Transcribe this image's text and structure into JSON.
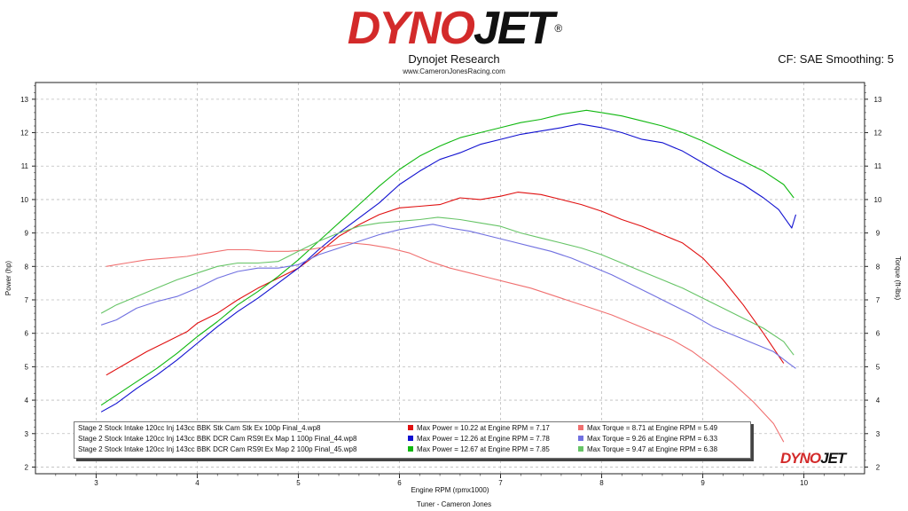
{
  "header": {
    "logo_text_a": "DYNO",
    "logo_text_b": "JET",
    "logo_reg": "®",
    "company": "Dynojet Research",
    "website": "www.CameronJonesRacing.com",
    "cf_text": "CF: SAE Smoothing: 5"
  },
  "footer": {
    "tuner": "Tuner - Cameron Jones",
    "mini_logo_a": "DYNO",
    "mini_logo_b": "JET"
  },
  "colors": {
    "red": "#e01010",
    "blue": "#1010d0",
    "green": "#10b810",
    "red_light": "#f07070",
    "blue_light": "#7070e0",
    "green_light": "#66c466",
    "logo_red": "#d32a2a"
  },
  "legend": {
    "rows": [
      {
        "name": "Stage 2 Stock Intake 120cc Inj 143cc BBK Stk Cam Stk Ex 100p Final_4.wp8",
        "power": "Max Power = 10.22 at Engine RPM = 7.17",
        "torque": "Max Torque = 8.71 at Engine RPM = 5.49",
        "color": "#e01010",
        "torque_color": "#f07070"
      },
      {
        "name": "Stage 2 Stock Intake 120cc Inj 143cc BBK DCR Cam RS9t Ex Map 1 100p Final_44.wp8",
        "power": "Max Power = 12.26 at Engine RPM = 7.78",
        "torque": "Max Torque = 9.26 at Engine RPM = 6.33",
        "color": "#1010d0",
        "torque_color": "#7070e0"
      },
      {
        "name": "Stage 2 Stock Intake 120cc Inj 143cc BBK DCR Cam RS9t Ex Map 2 100p Final_45.wp8",
        "power": "Max Power = 12.67 at Engine RPM = 7.85",
        "torque": "Max Torque = 9.47 at Engine RPM = 6.38",
        "color": "#10b810",
        "torque_color": "#66c466"
      }
    ]
  },
  "chart_data": {
    "type": "line",
    "xlabel": "Engine RPM (rpmx1000)",
    "ylabel_left": "Power (hp)",
    "ylabel_right": "Torque (ft-lbs)",
    "xlim": [
      2.4,
      10.6
    ],
    "ylim": [
      1.8,
      13.5
    ],
    "x_ticks": [
      3,
      4,
      5,
      6,
      7,
      8,
      9,
      10
    ],
    "y_ticks": [
      2,
      3,
      4,
      5,
      6,
      7,
      8,
      9,
      10,
      11,
      12,
      13
    ],
    "grid": true,
    "series": [
      {
        "name": "Final_4 Power",
        "color": "#e01010",
        "x": [
          3.1,
          3.3,
          3.5,
          3.7,
          3.9,
          4.0,
          4.2,
          4.4,
          4.6,
          4.8,
          5.0,
          5.2,
          5.4,
          5.6,
          5.8,
          6.0,
          6.2,
          6.4,
          6.6,
          6.8,
          7.0,
          7.17,
          7.4,
          7.6,
          7.8,
          8.0,
          8.2,
          8.4,
          8.6,
          8.8,
          9.0,
          9.2,
          9.4,
          9.6,
          9.8
        ],
        "y": [
          4.75,
          5.1,
          5.45,
          5.75,
          6.05,
          6.3,
          6.6,
          7.0,
          7.35,
          7.65,
          7.95,
          8.4,
          8.9,
          9.25,
          9.55,
          9.75,
          9.8,
          9.85,
          10.05,
          10.0,
          10.1,
          10.22,
          10.15,
          10.0,
          9.85,
          9.65,
          9.4,
          9.2,
          8.95,
          8.7,
          8.25,
          7.6,
          6.85,
          6.0,
          5.1
        ]
      },
      {
        "name": "Final_44 Power",
        "color": "#1010d0",
        "x": [
          3.05,
          3.2,
          3.4,
          3.6,
          3.8,
          4.0,
          4.2,
          4.4,
          4.6,
          4.8,
          5.0,
          5.2,
          5.4,
          5.6,
          5.8,
          6.0,
          6.2,
          6.4,
          6.6,
          6.8,
          7.0,
          7.2,
          7.4,
          7.6,
          7.78,
          8.0,
          8.2,
          8.4,
          8.6,
          8.8,
          9.0,
          9.2,
          9.4,
          9.6,
          9.75,
          9.88,
          9.92
        ],
        "y": [
          3.65,
          3.9,
          4.35,
          4.75,
          5.2,
          5.7,
          6.2,
          6.65,
          7.05,
          7.5,
          7.95,
          8.5,
          9.0,
          9.45,
          9.9,
          10.45,
          10.85,
          11.2,
          11.4,
          11.65,
          11.8,
          11.95,
          12.05,
          12.15,
          12.26,
          12.15,
          12.0,
          11.8,
          11.7,
          11.45,
          11.1,
          10.75,
          10.45,
          10.05,
          9.7,
          9.15,
          9.55
        ]
      },
      {
        "name": "Final_45 Power",
        "color": "#10b810",
        "x": [
          3.05,
          3.2,
          3.4,
          3.6,
          3.8,
          4.0,
          4.2,
          4.4,
          4.6,
          4.8,
          5.0,
          5.2,
          5.4,
          5.6,
          5.8,
          6.0,
          6.2,
          6.4,
          6.6,
          6.8,
          7.0,
          7.2,
          7.4,
          7.6,
          7.85,
          8.0,
          8.2,
          8.4,
          8.6,
          8.8,
          9.0,
          9.2,
          9.4,
          9.6,
          9.8,
          9.9
        ],
        "y": [
          3.85,
          4.15,
          4.55,
          4.95,
          5.4,
          5.9,
          6.35,
          6.85,
          7.25,
          7.7,
          8.2,
          8.75,
          9.3,
          9.85,
          10.4,
          10.9,
          11.3,
          11.6,
          11.85,
          12.0,
          12.15,
          12.3,
          12.4,
          12.55,
          12.67,
          12.6,
          12.5,
          12.35,
          12.2,
          12.0,
          11.75,
          11.45,
          11.15,
          10.85,
          10.45,
          10.05
        ]
      },
      {
        "name": "Final_4 Torque",
        "color": "#f07070",
        "x": [
          3.1,
          3.3,
          3.5,
          3.7,
          3.9,
          4.1,
          4.3,
          4.5,
          4.7,
          4.9,
          5.1,
          5.3,
          5.49,
          5.7,
          5.9,
          6.1,
          6.3,
          6.5,
          6.7,
          6.9,
          7.1,
          7.3,
          7.5,
          7.7,
          7.9,
          8.1,
          8.3,
          8.5,
          8.7,
          8.9,
          9.1,
          9.3,
          9.5,
          9.7,
          9.8
        ],
        "y": [
          8.0,
          8.1,
          8.2,
          8.25,
          8.3,
          8.4,
          8.5,
          8.5,
          8.45,
          8.45,
          8.5,
          8.6,
          8.71,
          8.65,
          8.55,
          8.4,
          8.15,
          7.95,
          7.8,
          7.65,
          7.5,
          7.35,
          7.15,
          6.95,
          6.75,
          6.55,
          6.3,
          6.05,
          5.8,
          5.45,
          5.0,
          4.5,
          3.95,
          3.3,
          2.75
        ]
      },
      {
        "name": "Final_44 Torque",
        "color": "#7070e0",
        "x": [
          3.05,
          3.2,
          3.4,
          3.6,
          3.8,
          4.0,
          4.2,
          4.4,
          4.6,
          4.8,
          5.0,
          5.2,
          5.4,
          5.6,
          5.8,
          6.0,
          6.2,
          6.33,
          6.5,
          6.7,
          6.9,
          7.1,
          7.3,
          7.5,
          7.7,
          7.9,
          8.1,
          8.3,
          8.5,
          8.7,
          8.9,
          9.1,
          9.3,
          9.5,
          9.7,
          9.85,
          9.92
        ],
        "y": [
          6.25,
          6.4,
          6.75,
          6.95,
          7.1,
          7.35,
          7.65,
          7.85,
          7.95,
          7.95,
          8.05,
          8.35,
          8.55,
          8.75,
          8.95,
          9.1,
          9.2,
          9.26,
          9.15,
          9.05,
          8.9,
          8.75,
          8.6,
          8.45,
          8.25,
          8.0,
          7.75,
          7.45,
          7.15,
          6.85,
          6.55,
          6.2,
          5.95,
          5.7,
          5.45,
          5.1,
          4.95
        ]
      },
      {
        "name": "Final_45 Torque",
        "color": "#66c466",
        "x": [
          3.05,
          3.2,
          3.4,
          3.6,
          3.8,
          4.0,
          4.2,
          4.4,
          4.6,
          4.8,
          5.0,
          5.2,
          5.4,
          5.6,
          5.8,
          6.0,
          6.2,
          6.38,
          6.6,
          6.8,
          7.0,
          7.2,
          7.4,
          7.6,
          7.8,
          8.0,
          8.2,
          8.4,
          8.6,
          8.8,
          9.0,
          9.2,
          9.4,
          9.6,
          9.8,
          9.9
        ],
        "y": [
          6.6,
          6.85,
          7.1,
          7.35,
          7.6,
          7.8,
          8.0,
          8.1,
          8.1,
          8.15,
          8.45,
          8.75,
          9.0,
          9.2,
          9.3,
          9.35,
          9.4,
          9.47,
          9.4,
          9.3,
          9.2,
          9.0,
          8.85,
          8.7,
          8.55,
          8.35,
          8.1,
          7.85,
          7.6,
          7.35,
          7.05,
          6.75,
          6.45,
          6.15,
          5.75,
          5.35
        ]
      }
    ]
  }
}
